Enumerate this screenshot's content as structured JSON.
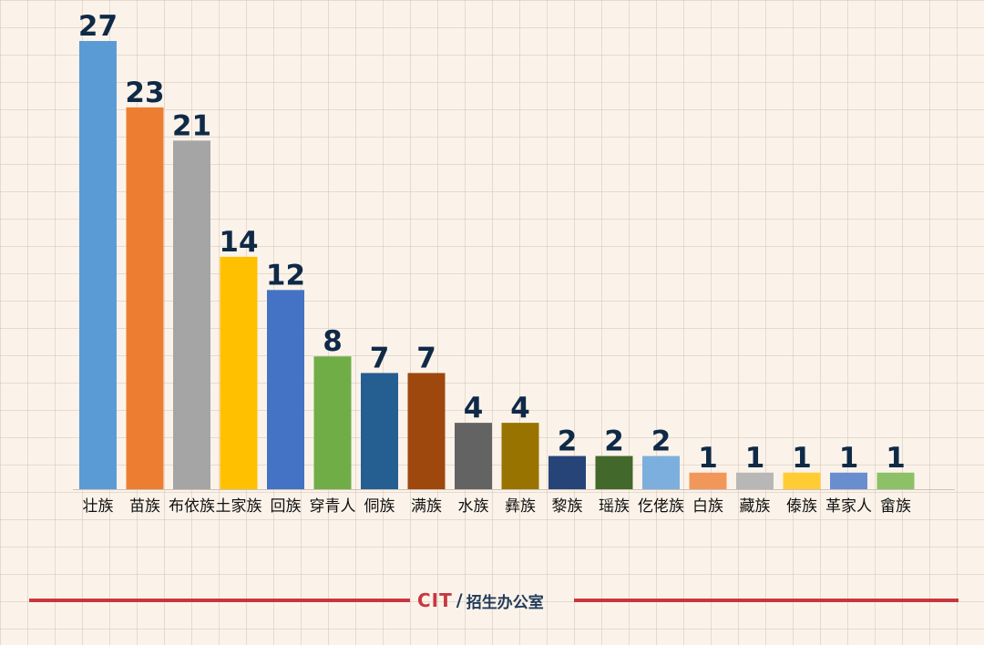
{
  "chart_data": {
    "type": "bar",
    "title": "",
    "xlabel": "",
    "ylabel": "",
    "ylim": [
      0,
      27
    ],
    "grid": true,
    "legend": "none",
    "categories": [
      "壮族",
      "苗族",
      "布依族",
      "土家族",
      "回族",
      "穿青人",
      "侗族",
      "满族",
      "水族",
      "彝族",
      "黎族",
      "瑶族",
      "仡佬族",
      "白族",
      "藏族",
      "傣族",
      "革家人",
      "畲族"
    ],
    "values": [
      27,
      23,
      21,
      14,
      12,
      8,
      7,
      7,
      4,
      4,
      2,
      2,
      2,
      1,
      1,
      1,
      1,
      1
    ],
    "colors": [
      "#5b9bd5",
      "#ed7d31",
      "#a5a5a5",
      "#ffc000",
      "#4472c4",
      "#70ad47",
      "#255e91",
      "#9e480e",
      "#636363",
      "#997300",
      "#264478",
      "#43682b",
      "#7cafdd",
      "#f1975a",
      "#b7b7b7",
      "#ffcd33",
      "#698ed0",
      "#8cc168"
    ]
  },
  "footer": {
    "brand_mark": "CIT",
    "brand_slash": "/",
    "brand_text": "招生办公室",
    "line_color": "#c8373f"
  }
}
